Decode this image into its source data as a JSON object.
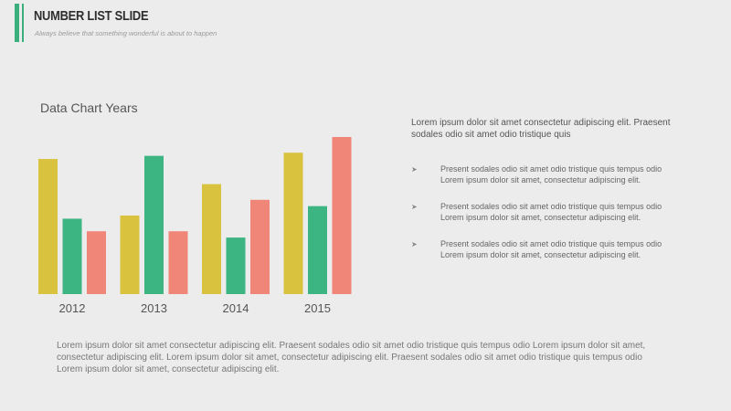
{
  "header": {
    "title": "NUMBER LIST SLIDE",
    "subtitle": "Always believe that something wonderful is about to happen"
  },
  "intro_text": "Lorem ipsum dolor sit amet consectetur adipiscing elit. Praesent sodales odio sit amet odio tristique quis",
  "bullets": [
    "Present sodales odio sit amet odio tristique quis tempus odio Lorem ipsum dolor sit amet, consectetur adipiscing elit.",
    "Present sodales odio sit amet odio tristique quis tempus odio Lorem ipsum dolor sit amet, consectetur adipiscing elit.",
    "Present sodales odio sit amet odio tristique quis tempus odio Lorem ipsum dolor sit amet, consectetur adipiscing elit."
  ],
  "bullet_icon": "arrow-bullet-icon",
  "footer_text": "Lorem ipsum dolor sit amet consectetur adipiscing elit. Praesent sodales odio sit amet odio tristique quis tempus odio Lorem ipsum dolor sit amet, consectetur adipiscing elit. Lorem ipsum dolor sit amet, consectetur adipiscing elit. Praesent sodales odio sit amet odio tristique quis tempus odio Lorem ipsum dolor sit amet, consectetur adipiscing elit.",
  "colors": {
    "accent": "#3aae7c",
    "yellow": "#d9c23d",
    "green": "#3db583",
    "salmon": "#ef8677"
  },
  "chart_data": {
    "type": "bar",
    "title": "Data Chart Years",
    "categories": [
      "2012",
      "2013",
      "2014",
      "2015"
    ],
    "series": [
      {
        "color": "#d9c23d",
        "values": [
          86,
          50,
          70,
          90
        ]
      },
      {
        "color": "#3db583",
        "values": [
          48,
          88,
          36,
          56
        ]
      },
      {
        "color": "#ef8677",
        "values": [
          40,
          40,
          60,
          100
        ]
      }
    ],
    "ylim": [
      0,
      100
    ],
    "grid": false,
    "legend": "none"
  }
}
